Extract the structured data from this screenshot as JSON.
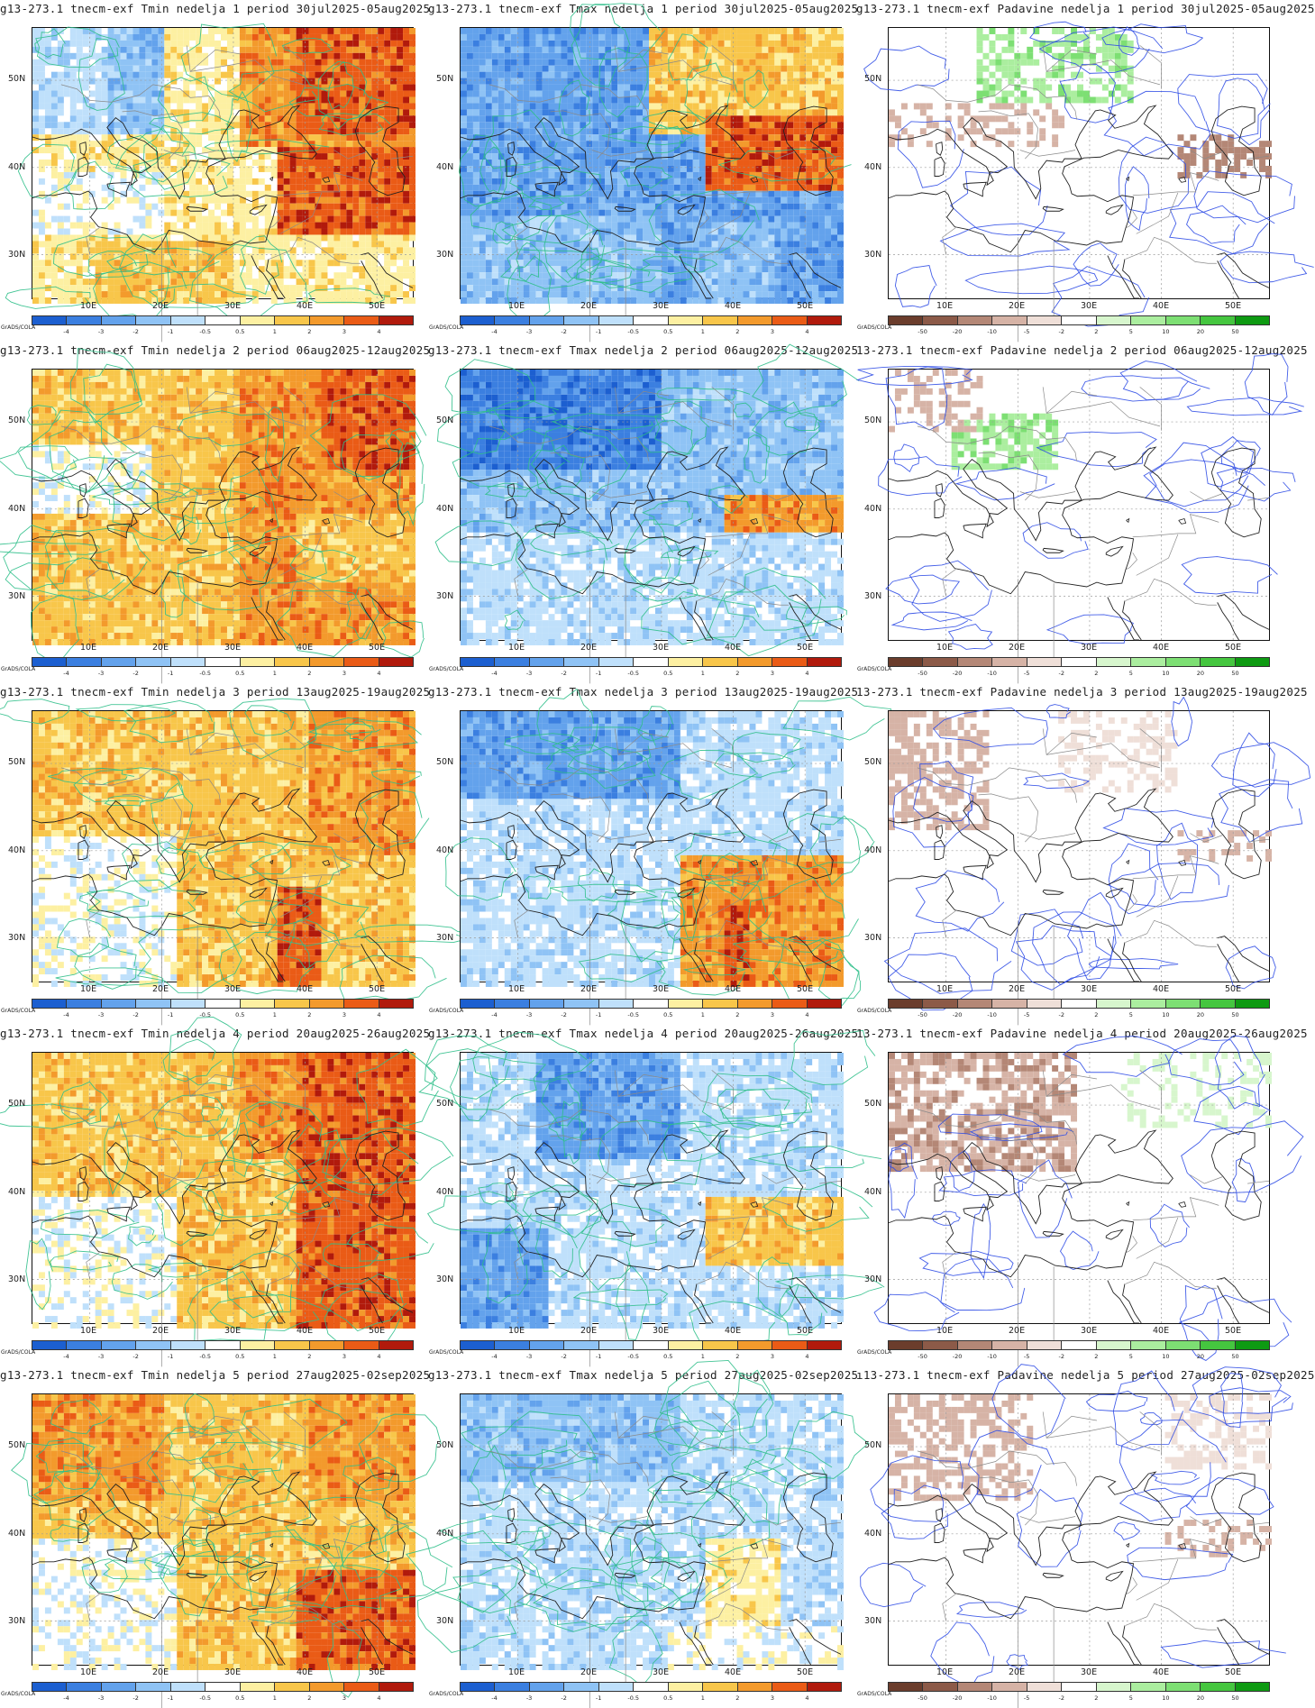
{
  "attribution": "GrADS/COLA",
  "temp_scale": {
    "labels": [
      "-4",
      "-3",
      "-2",
      "-1",
      "-0.5",
      "0.5",
      "1",
      "2",
      "3",
      "4"
    ],
    "colors": [
      "#1c5fd0",
      "#3b7fe0",
      "#63a2ec",
      "#8fc3f5",
      "#bfe0fb",
      "#ffffff",
      "#fdf0a2",
      "#f8c64a",
      "#f39a2c",
      "#ea5b16",
      "#b11a0c"
    ]
  },
  "precip_scale": {
    "labels": [
      "-50",
      "-20",
      "-10",
      "-5",
      "-2",
      "2",
      "5",
      "10",
      "20",
      "50"
    ],
    "colors": [
      "#6b3d2c",
      "#8c5a48",
      "#b48776",
      "#d6b3a6",
      "#efdfd8",
      "#ffffff",
      "#d7f6cd",
      "#abee9f",
      "#7ddf73",
      "#45c63f",
      "#0e9a12"
    ]
  },
  "lat_labels": [
    "50N",
    "40N",
    "30N"
  ],
  "lon_labels": [
    "10E",
    "20E",
    "30E",
    "40E",
    "50E"
  ],
  "rows": [
    {
      "titles": [
        "g13-273.1  tnecm-exf  Tmin  nedelja  1  period  30jul2025-05aug2025",
        "g13-273.1  tnecm-exf  Tmax  nedelja  1  period  30jul2025-05aug2025",
        "g13-273.1  tnecm-exf  Padavine  nedelja  1  period  30jul2025-05aug2025"
      ]
    },
    {
      "titles": [
        "g13-273.1  tnecm-exf  Tmin  nedelja  2  period  06aug2025-12aug2025",
        "g13-273.1  tnecm-exf  Tmax  nedelja  2  period  06aug2025-12aug2025",
        "13-273.1  tnecm-exf  Padavine  nedelja  2  period  06aug2025-12aug2025"
      ]
    },
    {
      "titles": [
        "g13-273.1  tnecm-exf  Tmin  nedelja  3  period  13aug2025-19aug2025",
        "g13-273.1  tnecm-exf  Tmax  nedelja  3  period  13aug2025-19aug2025",
        "13-273.1  tnecm-exf  Padavine  nedelja  3  period  13aug2025-19aug2025"
      ]
    },
    {
      "titles": [
        "g13-273.1  tnecm-exf  Tmin  nedelja  4  period  20aug2025-26aug2025",
        "g13-273.1  tnecm-exf  Tmax  nedelja  4  period  20aug2025-26aug2025",
        "13-273.1  tnecm-exf  Padavine  nedelja  4  period  20aug2025-26aug2025"
      ]
    },
    {
      "titles": [
        "g13-273.1  tnecm-exf  Tmin  nedelja  5  period  27aug2025-02sep2025",
        "g13-273.1  tnecm-exf  Tmax  nedelja  5  period  27aug2025-02sep2025",
        "ı13-273.1  tnecm-exf  Padavine  nedelja  5  period  27aug2025-02sep2025"
      ]
    }
  ]
}
